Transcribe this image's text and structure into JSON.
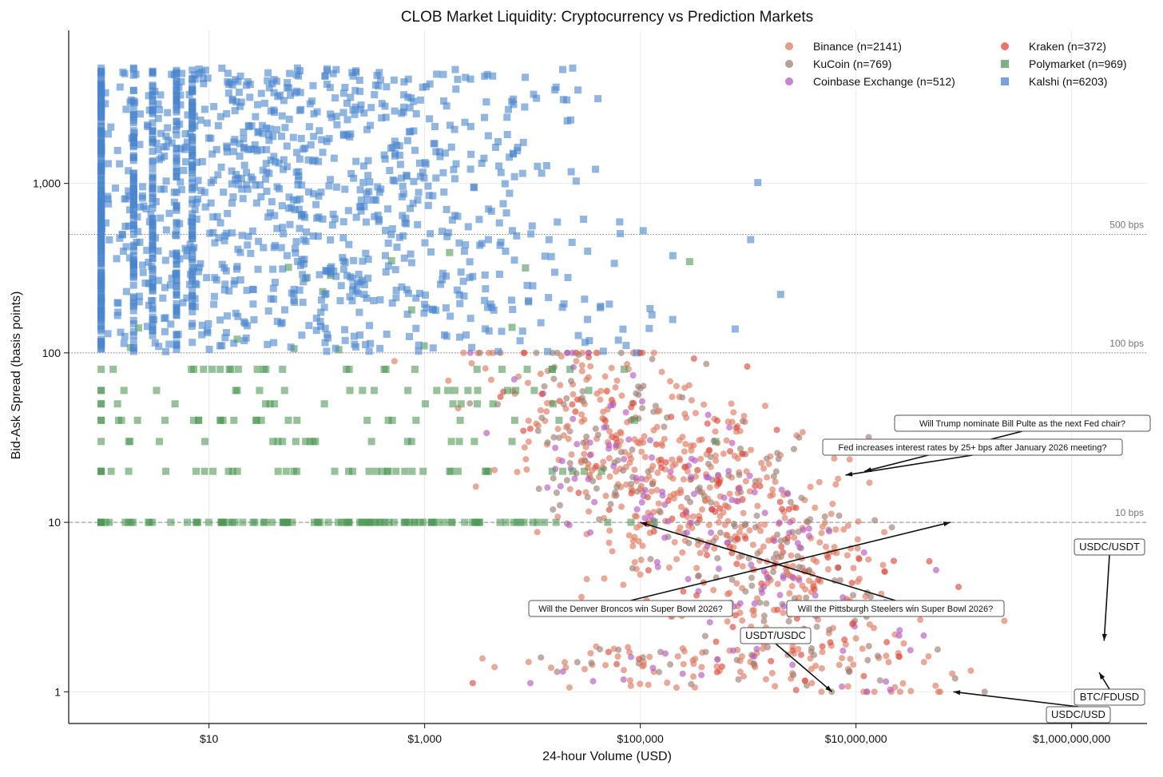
{
  "chart_data": {
    "type": "scatter",
    "title": "CLOB Market Liquidity: Cryptocurrency vs Prediction Markets",
    "xlabel": "24-hour Volume (USD)",
    "ylabel": "Bid-Ask Spread (basis points)",
    "x_scale": "log",
    "y_scale": "log",
    "xlim": [
      0.5,
      5000000000
    ],
    "ylim": [
      0.65,
      8000
    ],
    "x_ticks": [
      {
        "value": 10,
        "label": "$10"
      },
      {
        "value": 1000,
        "label": "$1,000"
      },
      {
        "value": 100000,
        "label": "$100,000"
      },
      {
        "value": 10000000,
        "label": "$10,000,000"
      },
      {
        "value": 1000000000,
        "label": "$1,000,000,000"
      }
    ],
    "y_ticks": [
      {
        "value": 1,
        "label": "1"
      },
      {
        "value": 10,
        "label": "10"
      },
      {
        "value": 100,
        "label": "100"
      },
      {
        "value": 1000,
        "label": "1,000"
      }
    ],
    "grid": true,
    "legend_position": "top-right",
    "reference_lines": [
      {
        "y": 500,
        "label": "500 bps",
        "style": "dotted"
      },
      {
        "y": 100,
        "label": "100 bps",
        "style": "dotted"
      },
      {
        "y": 10,
        "label": "10 bps",
        "style": "dashed"
      }
    ],
    "series": [
      {
        "name": "Binance (n=2141)",
        "color": "#E07A5F",
        "marker": "circle",
        "n": 2141,
        "group": "crypto",
        "x_range": [
          100,
          1500000000
        ],
        "y_range": [
          1,
          100
        ]
      },
      {
        "name": "KuCoin (n=769)",
        "color": "#9C7F73",
        "marker": "circle",
        "n": 769,
        "group": "crypto",
        "x_range": [
          100,
          600000000
        ],
        "y_range": [
          1,
          100
        ]
      },
      {
        "name": "Coinbase Exchange (n=512)",
        "color": "#B35BC2",
        "marker": "circle",
        "n": 512,
        "group": "crypto",
        "x_range": [
          1000,
          900000000
        ],
        "y_range": [
          1,
          100
        ]
      },
      {
        "name": "Kraken (n=372)",
        "color": "#E0483A",
        "marker": "circle",
        "n": 372,
        "group": "crypto",
        "x_range": [
          1000,
          1000000000
        ],
        "y_range": [
          1,
          100
        ]
      },
      {
        "name": "Polymarket (n=969)",
        "color": "#4E9A55",
        "marker": "square",
        "n": 969,
        "group": "prediction",
        "x_range": [
          1,
          500000
        ],
        "y_range": [
          10,
          400
        ]
      },
      {
        "name": "Kalshi (n=6203)",
        "color": "#4A86CF",
        "marker": "square",
        "n": 6203,
        "group": "prediction",
        "x_range": [
          1,
          2000000
        ],
        "y_range": [
          100,
          4800
        ]
      }
    ],
    "annotations": [
      {
        "text": "Will Trump nominate Bill Pulte as the next Fed chair?",
        "x": 12000000,
        "y": 20
      },
      {
        "text": "Fed increases interest rates by 25+ bps after January 2026 meeting?",
        "x": 8000000,
        "y": 19
      },
      {
        "text": "USDC/USDT",
        "x": 2000000000,
        "y": 2
      },
      {
        "text": "Will the Denver Broncos win Super Bowl 2026?",
        "x": 75000000,
        "y": 10
      },
      {
        "text": "Will the Pittsburgh Steelers win Super Bowl 2026?",
        "x": 100000,
        "y": 10
      },
      {
        "text": "USDT/USDC",
        "x": 6000000,
        "y": 1
      },
      {
        "text": "BTC/FDUSD",
        "x": 1800000000,
        "y": 1.3
      },
      {
        "text": "USDC/USD",
        "x": 80000000,
        "y": 1
      }
    ]
  }
}
